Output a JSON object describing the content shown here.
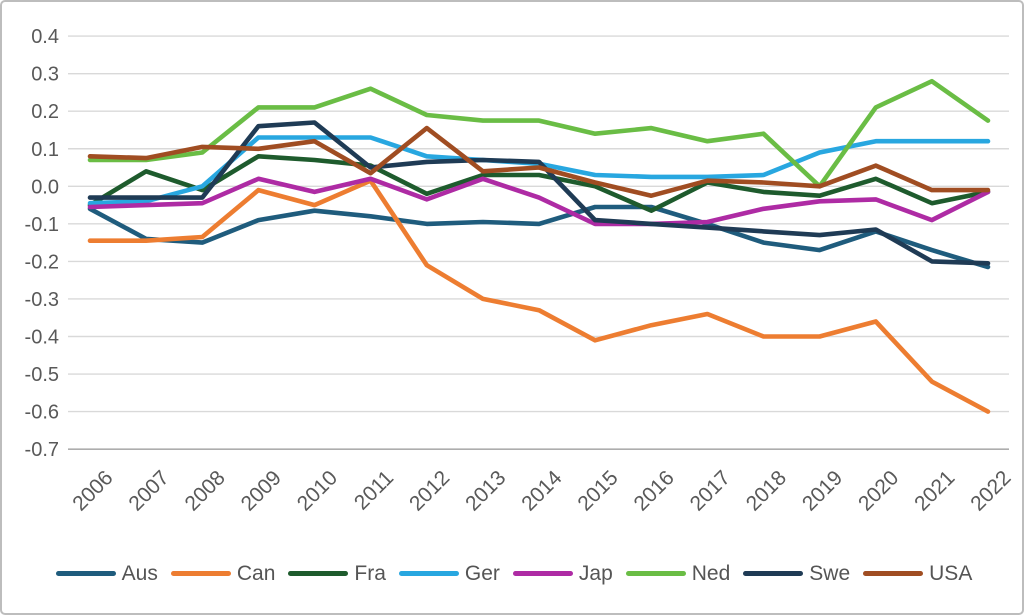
{
  "chart_data": {
    "type": "line",
    "title": "",
    "xlabel": "",
    "ylabel": "",
    "categories": [
      "2006",
      "2007",
      "2008",
      "2009",
      "2010",
      "2011",
      "2012",
      "2013",
      "2014",
      "2015",
      "2016",
      "2017",
      "2018",
      "2019",
      "2020",
      "2021",
      "2022"
    ],
    "series": [
      {
        "name": "Aus",
        "color": "#1F5C7D",
        "values": [
          -0.06,
          -0.14,
          -0.15,
          -0.09,
          -0.065,
          -0.08,
          -0.1,
          -0.095,
          -0.1,
          -0.055,
          -0.055,
          -0.1,
          -0.15,
          -0.17,
          -0.12,
          -0.17,
          -0.215
        ]
      },
      {
        "name": "Can",
        "color": "#ED7D31",
        "values": [
          -0.145,
          -0.145,
          -0.135,
          -0.01,
          -0.05,
          0.015,
          -0.21,
          -0.3,
          -0.33,
          -0.41,
          -0.37,
          -0.34,
          -0.4,
          -0.4,
          -0.36,
          -0.52,
          -0.6
        ]
      },
      {
        "name": "Fra",
        "color": "#1E5B2D",
        "values": [
          -0.05,
          0.04,
          -0.01,
          0.08,
          0.07,
          0.055,
          -0.02,
          0.03,
          0.03,
          0.0,
          -0.065,
          0.01,
          -0.015,
          -0.025,
          0.02,
          -0.045,
          -0.015
        ]
      },
      {
        "name": "Ger",
        "color": "#28A7E0",
        "values": [
          -0.045,
          -0.04,
          0.0,
          0.13,
          0.13,
          0.13,
          0.08,
          0.07,
          0.06,
          0.03,
          0.025,
          0.025,
          0.03,
          0.09,
          0.12,
          0.12,
          0.12
        ]
      },
      {
        "name": "Jap",
        "color": "#AE2BA4",
        "values": [
          -0.055,
          -0.05,
          -0.045,
          0.02,
          -0.015,
          0.02,
          -0.035,
          0.02,
          -0.03,
          -0.1,
          -0.1,
          -0.095,
          -0.06,
          -0.04,
          -0.035,
          -0.09,
          -0.015
        ]
      },
      {
        "name": "Ned",
        "color": "#6ABD45",
        "values": [
          0.07,
          0.07,
          0.09,
          0.21,
          0.21,
          0.26,
          0.19,
          0.175,
          0.175,
          0.14,
          0.155,
          0.12,
          0.14,
          0.0,
          0.21,
          0.28,
          0.175
        ]
      },
      {
        "name": "Swe",
        "color": "#1F3B55",
        "values": [
          -0.03,
          -0.03,
          -0.03,
          0.16,
          0.17,
          0.05,
          0.065,
          0.07,
          0.065,
          -0.09,
          -0.1,
          -0.11,
          -0.12,
          -0.13,
          -0.115,
          -0.2,
          -0.205
        ]
      },
      {
        "name": "USA",
        "color": "#A04D22",
        "values": [
          0.08,
          0.075,
          0.105,
          0.1,
          0.12,
          0.035,
          0.155,
          0.04,
          0.05,
          0.01,
          -0.025,
          0.015,
          0.01,
          0.0,
          0.055,
          -0.01,
          -0.01
        ]
      }
    ],
    "ylim": [
      -0.7,
      0.4
    ],
    "ytick_step": 0.1,
    "ytick_labels": [
      "0.4",
      "0.3",
      "0.2",
      "0.1",
      "0.0",
      "-0.1",
      "-0.2",
      "-0.3",
      "-0.4",
      "-0.5",
      "-0.6",
      "-0.7"
    ],
    "grid": true,
    "legend_position": "bottom",
    "line_width": 4.6,
    "theme": {
      "background": "#FFFFFF",
      "border_color": "#BDBDBD",
      "grid_color": "#D9D9D9",
      "axis_line_color": "#ADADAD",
      "tick_label_color": "#595959",
      "legend_text_color": "#555555",
      "tick_font_size": 20,
      "x_tick_rotation": -45
    }
  }
}
